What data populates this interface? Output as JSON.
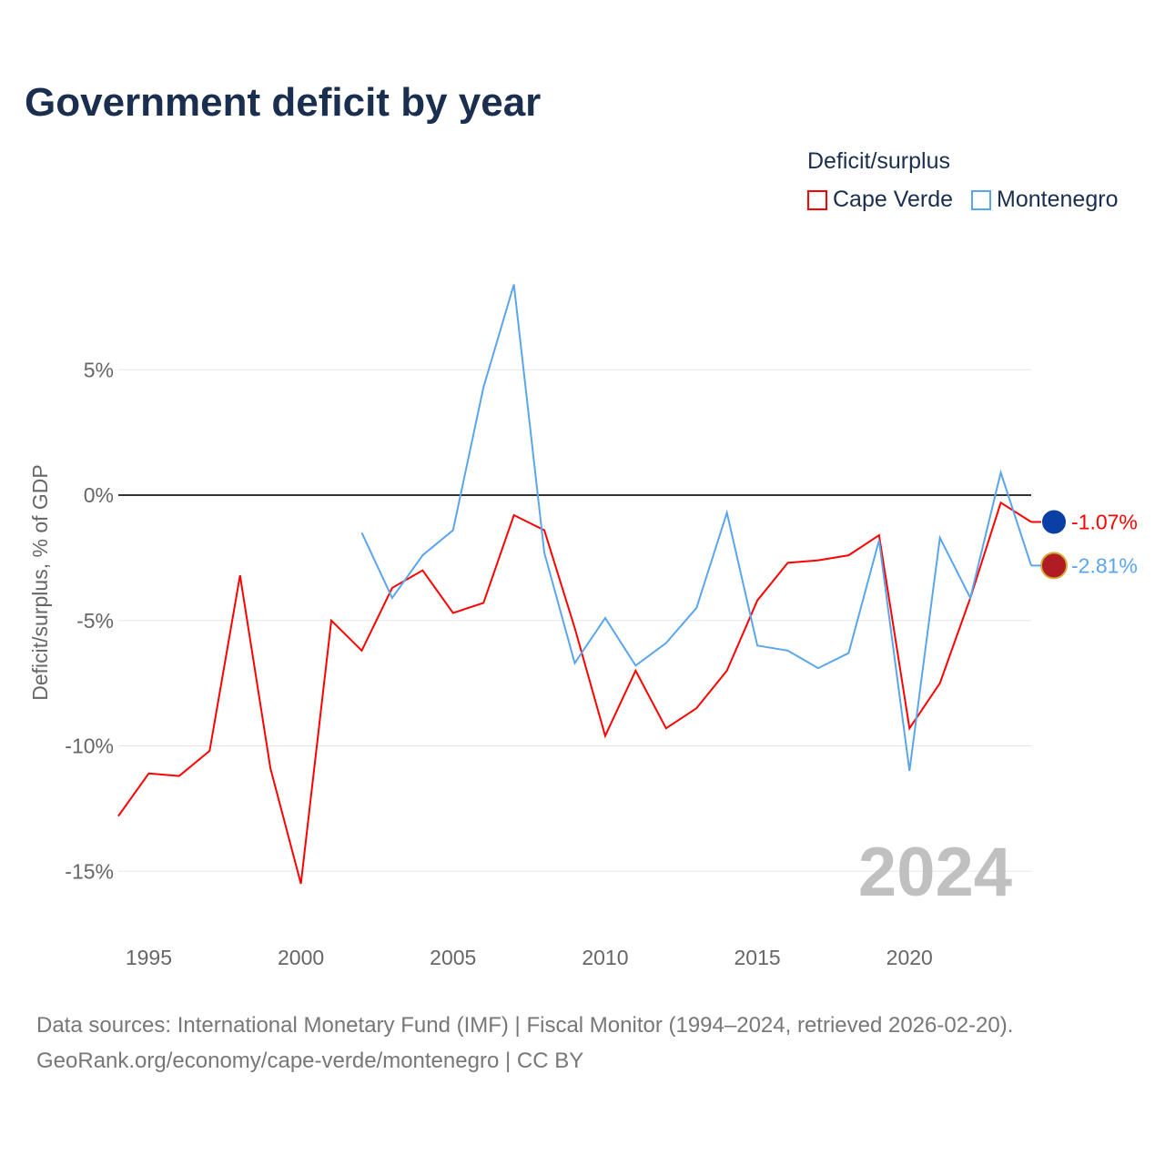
{
  "title": "Government deficit by year",
  "legend_title": "Deficit/surplus",
  "footer": {
    "line1": "Data sources: International Monetary Fund (IMF) | Fiscal Monitor (1994–2024, retrieved 2026-02-20).",
    "line2": "GeoRank.org/economy/cape-verde/montenegro | CC BY"
  },
  "year_watermark": "2024",
  "chart_data": {
    "type": "line",
    "title": "Government deficit by year",
    "xlabel": "",
    "ylabel": "Deficit/surplus, % of GDP",
    "xlim": [
      1994,
      2024
    ],
    "ylim": [
      -17,
      10
    ],
    "xticks": [
      1995,
      2000,
      2005,
      2010,
      2015,
      2020
    ],
    "yticks": [
      5,
      0,
      -5,
      -10,
      -15
    ],
    "ytick_labels": [
      "5%",
      "0%",
      "-5%",
      "-10%",
      "-15%"
    ],
    "grid": true,
    "legend_position": "top-right",
    "series": [
      {
        "name": "Cape Verde",
        "color": "#ff0000",
        "end_label": "-1.07%",
        "x": [
          1994,
          1995,
          1996,
          1997,
          1998,
          1999,
          2000,
          2001,
          2002,
          2003,
          2004,
          2005,
          2006,
          2007,
          2008,
          2009,
          2010,
          2011,
          2012,
          2013,
          2014,
          2015,
          2016,
          2017,
          2018,
          2019,
          2020,
          2021,
          2022,
          2023,
          2024
        ],
        "values": [
          -12.8,
          -11.1,
          -11.2,
          -10.2,
          -3.2,
          -10.9,
          -15.5,
          -5.0,
          -6.2,
          -3.7,
          -3.0,
          -4.7,
          -4.3,
          -0.8,
          -1.4,
          -5.3,
          -9.6,
          -7.0,
          -9.3,
          -8.5,
          -7.0,
          -4.2,
          -2.7,
          -2.6,
          -2.4,
          -1.6,
          -9.3,
          -7.5,
          -4.1,
          -0.3,
          -1.07
        ]
      },
      {
        "name": "Montenegro",
        "color": "#5aa5ec",
        "end_label": "-2.81%",
        "x": [
          2002,
          2003,
          2004,
          2005,
          2006,
          2007,
          2008,
          2009,
          2010,
          2011,
          2012,
          2013,
          2014,
          2015,
          2016,
          2017,
          2018,
          2019,
          2020,
          2021,
          2022,
          2023,
          2024
        ],
        "values": [
          -1.5,
          -4.1,
          -2.4,
          -1.4,
          4.3,
          8.4,
          -2.3,
          -6.7,
          -4.9,
          -6.8,
          -5.9,
          -4.5,
          -0.7,
          -6.0,
          -6.2,
          -6.9,
          -6.3,
          -1.8,
          -11.0,
          -1.7,
          -4.1,
          0.9,
          -2.81
        ]
      }
    ]
  }
}
